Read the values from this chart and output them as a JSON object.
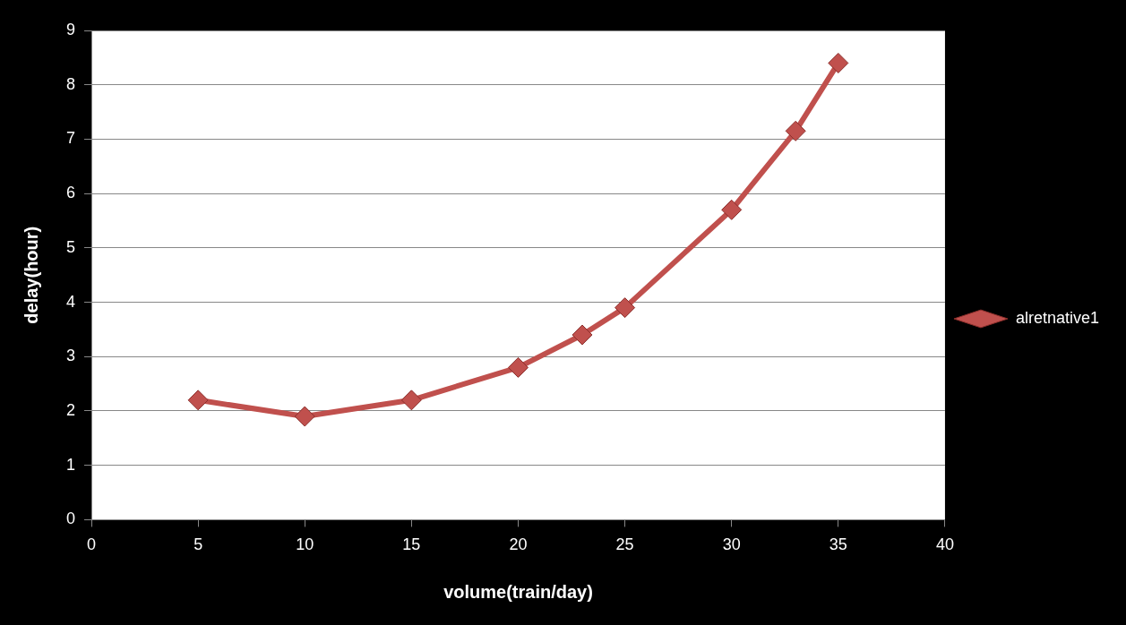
{
  "chart_data": {
    "type": "line",
    "xlabel": "volume(train/day)",
    "ylabel": "delay(hour)",
    "x": [
      5,
      10,
      15,
      20,
      23,
      25,
      30,
      33,
      35
    ],
    "series": [
      {
        "name": "alretnative1",
        "color": "#c0504d",
        "values": [
          2.2,
          1.9,
          2.2,
          2.8,
          3.4,
          3.9,
          5.7,
          7.15,
          8.4
        ]
      }
    ],
    "xlim": [
      0,
      40
    ],
    "xticks": [
      0,
      5,
      10,
      15,
      20,
      25,
      30,
      35,
      40
    ],
    "ylim": [
      0,
      9
    ],
    "yticks": [
      0,
      1,
      2,
      3,
      4,
      5,
      6,
      7,
      8,
      9
    ],
    "grid": "y",
    "legend": "right",
    "marker": "diamond",
    "line_style": "solid"
  }
}
